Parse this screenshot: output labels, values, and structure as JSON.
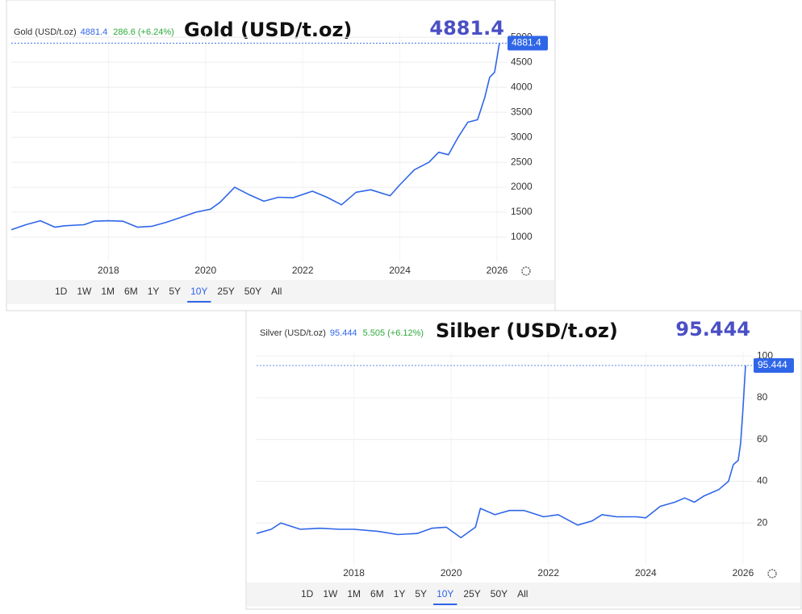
{
  "chart_data": [
    {
      "type": "line",
      "symbol": "Gold (USD/t.oz)",
      "price": 4881.4,
      "change": "286.6 (+6.24%)",
      "title": "Gold (USD/t.oz)",
      "x": [
        2016.0,
        2016.3,
        2016.6,
        2016.9,
        2017.1,
        2017.5,
        2017.7,
        2018.0,
        2018.3,
        2018.6,
        2018.9,
        2019.2,
        2019.5,
        2019.8,
        2020.1,
        2020.3,
        2020.6,
        2020.9,
        2021.2,
        2021.5,
        2021.8,
        2022.2,
        2022.5,
        2022.8,
        2023.1,
        2023.4,
        2023.8,
        2024.0,
        2024.3,
        2024.6,
        2024.8,
        2025.0,
        2025.2,
        2025.4,
        2025.6,
        2025.75,
        2025.85,
        2025.95,
        2026.05
      ],
      "series": [
        {
          "name": "Gold",
          "color": "#2f66e8",
          "values": [
            1150,
            1250,
            1330,
            1200,
            1230,
            1250,
            1320,
            1330,
            1320,
            1200,
            1220,
            1300,
            1400,
            1500,
            1560,
            1700,
            2000,
            1850,
            1720,
            1800,
            1790,
            1920,
            1800,
            1650,
            1900,
            1950,
            1830,
            2050,
            2350,
            2500,
            2700,
            2650,
            3000,
            3300,
            3350,
            3800,
            4200,
            4300,
            4881.4
          ]
        }
      ],
      "xlim": [
        2016.0,
        2026.2
      ],
      "xticks": [
        2018,
        2020,
        2022,
        2024,
        2026
      ],
      "ylim": [
        500,
        5100
      ],
      "yticks": [
        1000,
        1500,
        2000,
        2500,
        3000,
        3500,
        4000,
        4500,
        5000
      ],
      "grid": true,
      "ranges": [
        "1D",
        "1W",
        "1M",
        "6M",
        "1Y",
        "5Y",
        "10Y",
        "25Y",
        "50Y",
        "All"
      ],
      "selected_range": "10Y"
    },
    {
      "type": "line",
      "symbol": "Silver (USD/t.oz)",
      "price": 95.444,
      "change": "5.505 (+6.12%)",
      "title": "Silber (USD/t.oz)",
      "x": [
        2016.0,
        2016.3,
        2016.5,
        2016.9,
        2017.3,
        2017.7,
        2018.0,
        2018.5,
        2018.9,
        2019.3,
        2019.6,
        2019.9,
        2020.2,
        2020.5,
        2020.6,
        2020.9,
        2021.2,
        2021.5,
        2021.9,
        2022.2,
        2022.6,
        2022.9,
        2023.1,
        2023.4,
        2023.8,
        2024.0,
        2024.3,
        2024.6,
        2024.8,
        2025.0,
        2025.2,
        2025.5,
        2025.7,
        2025.8,
        2025.9,
        2025.95,
        2026.0,
        2026.05
      ],
      "series": [
        {
          "name": "Silver",
          "color": "#2f66e8",
          "values": [
            15,
            17,
            20,
            17,
            17.5,
            17,
            17,
            16,
            14.5,
            15,
            17.5,
            18,
            13,
            18,
            27,
            24,
            26,
            26,
            23,
            24,
            19,
            21,
            24,
            23,
            23,
            22.5,
            28,
            30,
            32,
            30,
            33,
            36,
            40,
            48,
            50,
            58,
            75,
            95.444
          ]
        }
      ],
      "xlim": [
        2016.0,
        2026.2
      ],
      "xticks": [
        2018,
        2020,
        2022,
        2024,
        2026
      ],
      "ylim": [
        0,
        102
      ],
      "yticks": [
        20,
        40,
        60,
        80,
        100
      ],
      "grid": true,
      "ranges": [
        "1D",
        "1W",
        "1M",
        "6M",
        "1Y",
        "5Y",
        "10Y",
        "25Y",
        "50Y",
        "All"
      ],
      "selected_range": "10Y"
    }
  ]
}
